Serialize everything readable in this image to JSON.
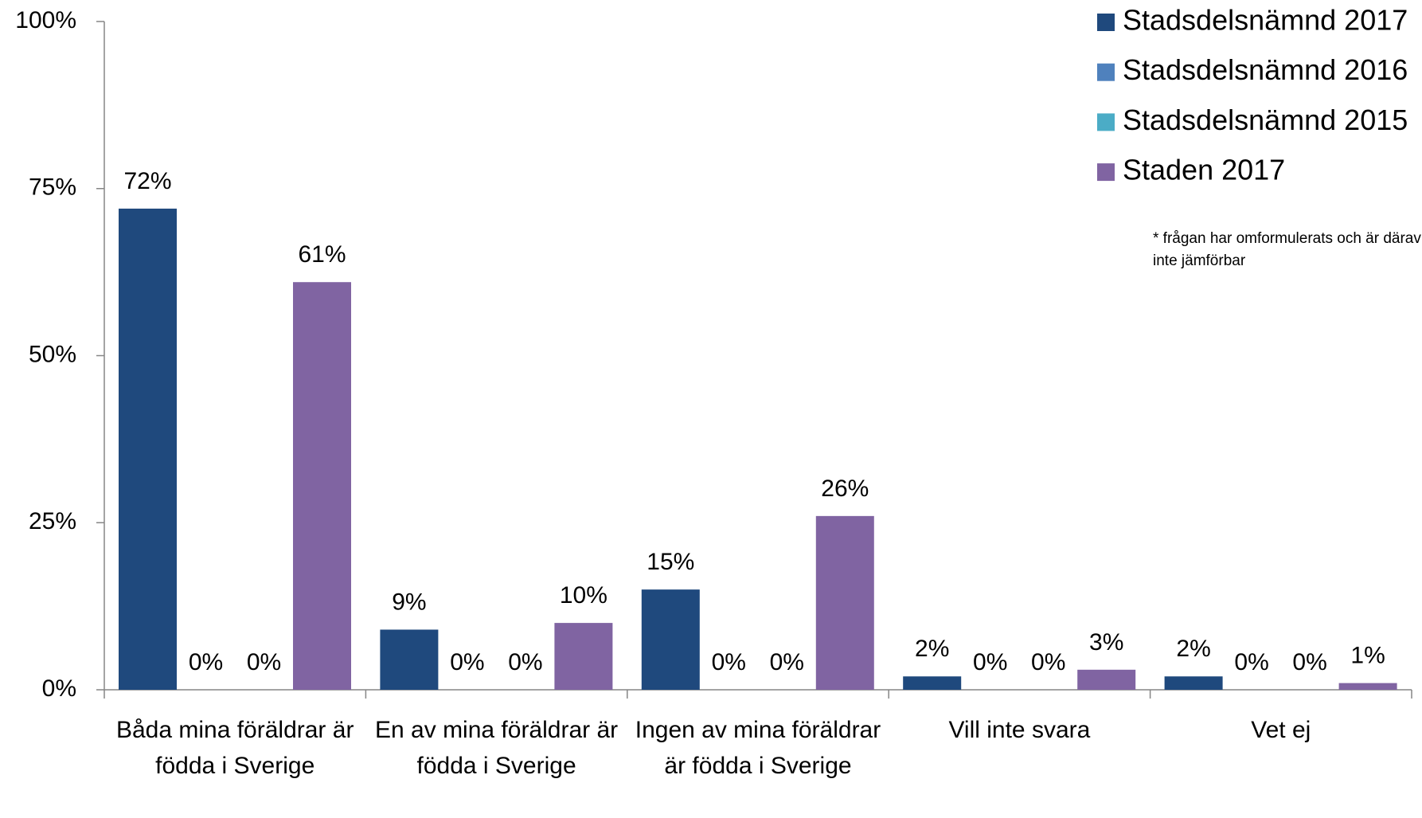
{
  "chart_data": {
    "type": "bar",
    "categories": [
      "Båda mina föräldrar är födda i Sverige",
      "En av mina föräldrar är födda i Sverige",
      "Ingen av mina föräldrar är födda i Sverige",
      "Vill inte svara",
      "Vet ej"
    ],
    "series": [
      {
        "name": "Stadsdelsnämnd 2017",
        "color": "#1f497d",
        "values": [
          72,
          9,
          15,
          2,
          2
        ],
        "value_labels": [
          "72%",
          "9%",
          "15%",
          "2%",
          "2%"
        ]
      },
      {
        "name": "Stadsdelsnämnd 2016",
        "color": "#4f81bd",
        "values": [
          0,
          0,
          0,
          0,
          0
        ],
        "value_labels": [
          "0%",
          "0%",
          "0%",
          "0%",
          "0%"
        ]
      },
      {
        "name": "Stadsdelsnämnd 2015",
        "color": "#4bacc6",
        "values": [
          0,
          0,
          0,
          0,
          0
        ],
        "value_labels": [
          "0%",
          "0%",
          "0%",
          "0%",
          "0%"
        ]
      },
      {
        "name": "Staden 2017",
        "color": "#8064a2",
        "values": [
          61,
          10,
          26,
          3,
          1
        ],
        "value_labels": [
          "61%",
          "10%",
          "26%",
          "3%",
          "1%"
        ]
      }
    ],
    "ylim": [
      0,
      100
    ],
    "yticks": [
      {
        "value": 0,
        "label": "0%"
      },
      {
        "value": 25,
        "label": "25%"
      },
      {
        "value": 50,
        "label": "50%"
      },
      {
        "value": 75,
        "label": "75%"
      },
      {
        "value": 100,
        "label": "100%"
      }
    ],
    "annotation": "* frågan har omformulerats och är därav inte jämförbar",
    "legend": "top-right"
  }
}
